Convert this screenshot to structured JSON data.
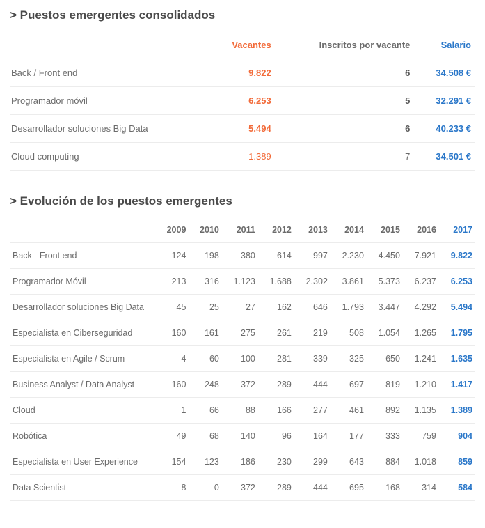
{
  "colors": {
    "text": "#6b6b6b",
    "heading": "#4a4a4a",
    "accent_orange": "#f26b3a",
    "accent_blue": "#2a77c9",
    "row_border": "#ececec",
    "background": "#ffffff"
  },
  "typography": {
    "base_font": "Helvetica Neue, Arial, sans-serif",
    "heading_size_pt": 13,
    "body_size_pt": 10
  },
  "section1": {
    "heading": "> Puestos emergentes consolidados",
    "columns": {
      "vacantes": "Vacantes",
      "inscritos": "Inscritos por vacante",
      "salario": "Salario"
    },
    "rows": [
      {
        "label": "Back / Front end",
        "vacantes": "9.822",
        "vac_bold": true,
        "inscritos": "6",
        "insc_bold": true,
        "salario": "34.508 €"
      },
      {
        "label": "Programador móvil",
        "vacantes": "6.253",
        "vac_bold": true,
        "inscritos": "5",
        "insc_bold": true,
        "salario": "32.291 €"
      },
      {
        "label": "Desarrollador soluciones Big Data",
        "vacantes": "5.494",
        "vac_bold": true,
        "inscritos": "6",
        "insc_bold": true,
        "salario": "40.233 €"
      },
      {
        "label": "Cloud computing",
        "vacantes": "1.389",
        "vac_bold": false,
        "inscritos": "7",
        "insc_bold": false,
        "salario": "34.501 €"
      }
    ]
  },
  "section2": {
    "heading": "> Evolución de los puestos emergentes",
    "years": [
      "2009",
      "2010",
      "2011",
      "2012",
      "2013",
      "2014",
      "2015",
      "2016",
      "2017"
    ],
    "rows": [
      {
        "label": "Back - Front end",
        "v": [
          "124",
          "198",
          "380",
          "614",
          "997",
          "2.230",
          "4.450",
          "7.921",
          "9.822"
        ]
      },
      {
        "label": "Programador Móvil",
        "v": [
          "213",
          "316",
          "1.123",
          "1.688",
          "2.302",
          "3.861",
          "5.373",
          "6.237",
          "6.253"
        ]
      },
      {
        "label": "Desarrollador soluciones Big Data",
        "v": [
          "45",
          "25",
          "27",
          "162",
          "646",
          "1.793",
          "3.447",
          "4.292",
          "5.494"
        ]
      },
      {
        "label": "Especialista en Ciberseguridad",
        "v": [
          "160",
          "161",
          "275",
          "261",
          "219",
          "508",
          "1.054",
          "1.265",
          "1.795"
        ]
      },
      {
        "label": "Especialista en Agile / Scrum",
        "v": [
          "4",
          "60",
          "100",
          "281",
          "339",
          "325",
          "650",
          "1.241",
          "1.635"
        ]
      },
      {
        "label": "Business Analyst / Data Analyst",
        "v": [
          "160",
          "248",
          "372",
          "289",
          "444",
          "697",
          "819",
          "1.210",
          "1.417"
        ]
      },
      {
        "label": "Cloud",
        "v": [
          "1",
          "66",
          "88",
          "166",
          "277",
          "461",
          "892",
          "1.135",
          "1.389"
        ]
      },
      {
        "label": "Robótica",
        "v": [
          "49",
          "68",
          "140",
          "96",
          "164",
          "177",
          "333",
          "759",
          "904"
        ]
      },
      {
        "label": "Especialista en User Experience",
        "v": [
          "154",
          "123",
          "186",
          "230",
          "299",
          "643",
          "884",
          "1.018",
          "859"
        ]
      },
      {
        "label": "Data Scientist",
        "v": [
          "8",
          "0",
          "372",
          "289",
          "444",
          "695",
          "168",
          "314",
          "584"
        ]
      }
    ]
  }
}
